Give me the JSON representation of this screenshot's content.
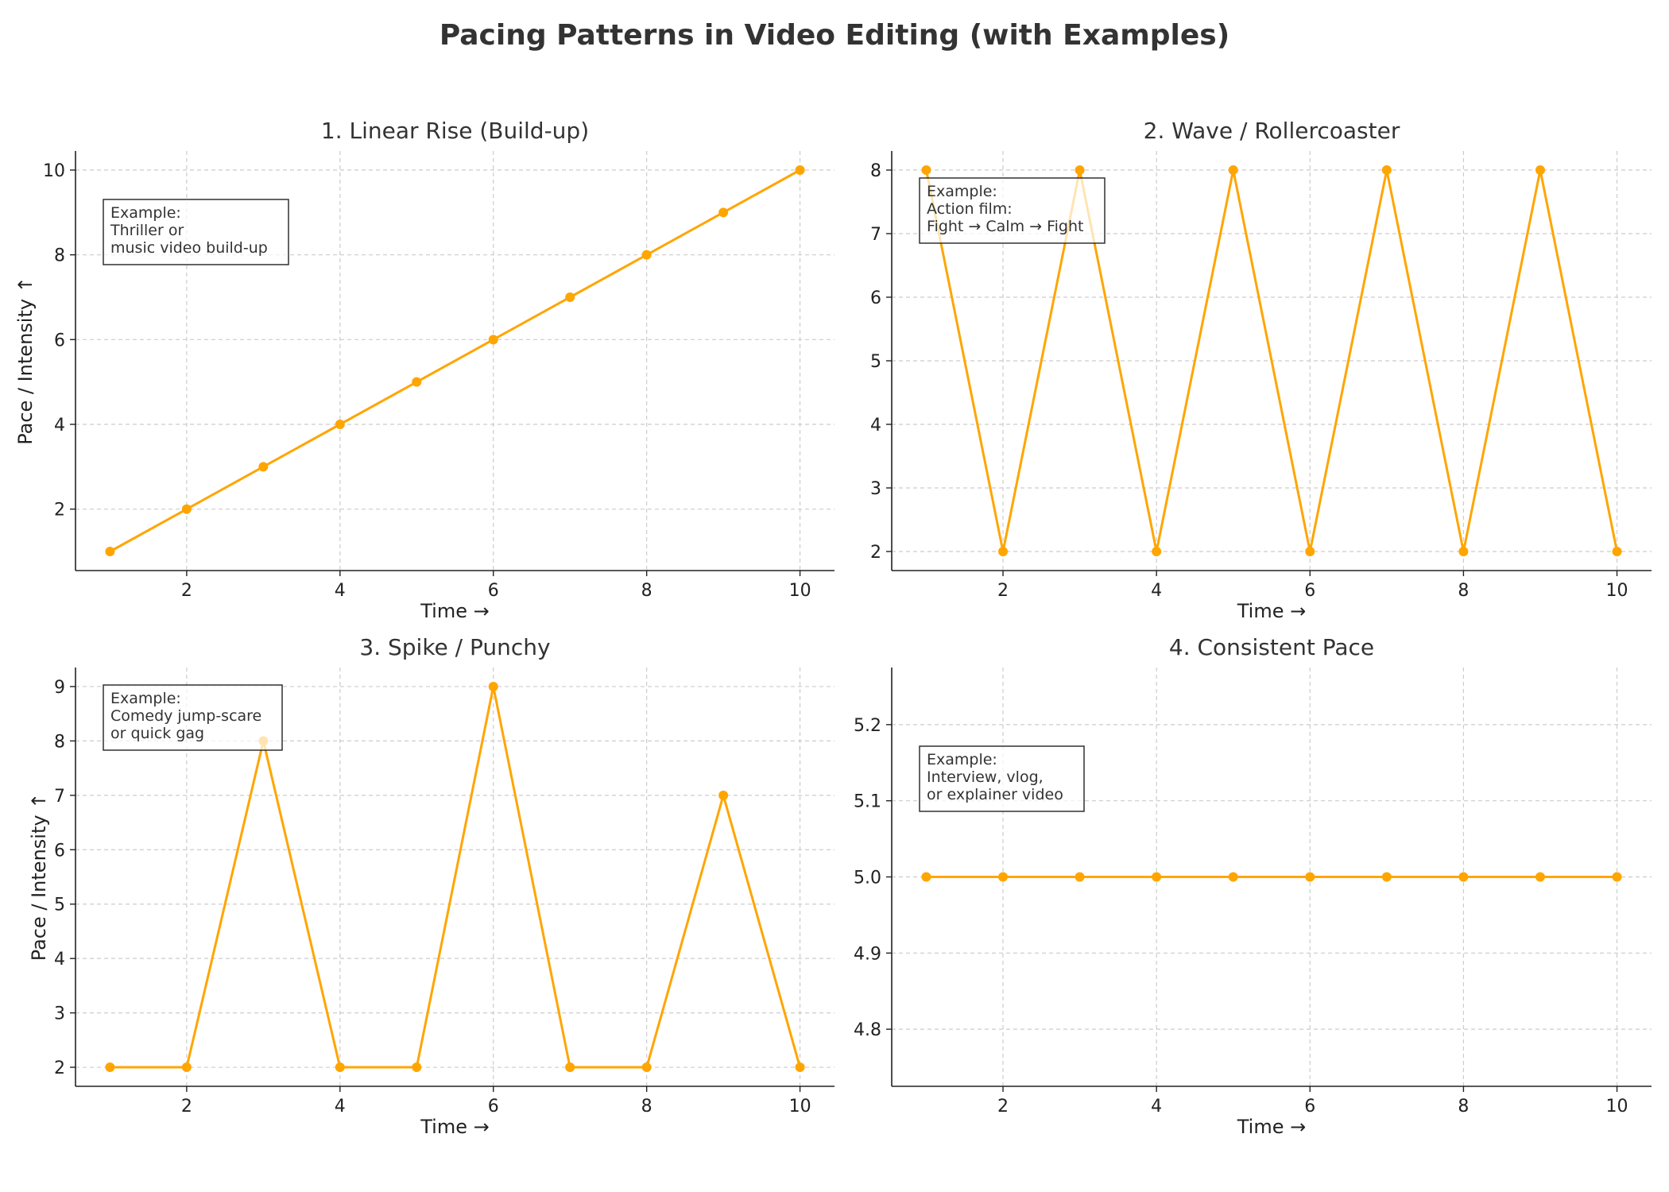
{
  "figure": {
    "title": "Pacing Patterns in Video Editing (with Examples)",
    "line_color": "#FFA500",
    "grid": true
  },
  "chart_data": [
    {
      "type": "line",
      "title": "1. Linear Rise (Build-up)",
      "xlabel": "Time →",
      "ylabel": "Pace / Intensity ↑",
      "x": [
        1,
        2,
        3,
        4,
        5,
        6,
        7,
        8,
        9,
        10
      ],
      "series": [
        {
          "values": [
            1,
            2,
            3,
            4,
            5,
            6,
            7,
            8,
            9,
            10
          ]
        }
      ],
      "xlim": [
        0.55,
        10.45
      ],
      "ylim": [
        0.55,
        10.45
      ],
      "xticks": [
        2,
        4,
        6,
        8,
        10
      ],
      "yticks": [
        2,
        4,
        6,
        8,
        10
      ],
      "annotation": {
        "lines": [
          "Example:",
          "Thriller or",
          "music video build-up"
        ],
        "position": "top-left"
      }
    },
    {
      "type": "line",
      "title": "2. Wave / Rollercoaster",
      "xlabel": "Time →",
      "ylabel": "",
      "x": [
        1,
        2,
        3,
        4,
        5,
        6,
        7,
        8,
        9,
        10
      ],
      "series": [
        {
          "values": [
            8,
            2,
            8,
            2,
            8,
            2,
            8,
            2,
            8,
            2
          ]
        }
      ],
      "xlim": [
        0.55,
        10.45
      ],
      "ylim": [
        1.7,
        8.3
      ],
      "xticks": [
        2,
        4,
        6,
        8,
        10
      ],
      "yticks": [
        2,
        3,
        4,
        5,
        6,
        7,
        8
      ],
      "annotation": {
        "lines": [
          "Example:",
          "Action film:",
          "Fight → Calm → Fight"
        ],
        "position": "top-left"
      }
    },
    {
      "type": "line",
      "title": "3. Spike / Punchy",
      "xlabel": "Time →",
      "ylabel": "Pace / Intensity ↑",
      "x": [
        1,
        2,
        3,
        4,
        5,
        6,
        7,
        8,
        9,
        10
      ],
      "series": [
        {
          "values": [
            2,
            2,
            8,
            2,
            2,
            9,
            2,
            2,
            7,
            2
          ]
        }
      ],
      "xlim": [
        0.55,
        10.45
      ],
      "ylim": [
        1.65,
        9.35
      ],
      "xticks": [
        2,
        4,
        6,
        8,
        10
      ],
      "yticks": [
        2,
        3,
        4,
        5,
        6,
        7,
        8,
        9
      ],
      "annotation": {
        "lines": [
          "Example:",
          "Comedy jump-scare",
          "or quick gag"
        ],
        "position": "top-left"
      }
    },
    {
      "type": "line",
      "title": "4. Consistent Pace",
      "xlabel": "Time →",
      "ylabel": "",
      "x": [
        1,
        2,
        3,
        4,
        5,
        6,
        7,
        8,
        9,
        10
      ],
      "series": [
        {
          "values": [
            5,
            5,
            5,
            5,
            5,
            5,
            5,
            5,
            5,
            5
          ]
        }
      ],
      "xlim": [
        0.55,
        10.45
      ],
      "ylim": [
        4.725,
        5.275
      ],
      "xticks": [
        2,
        4,
        6,
        8,
        10
      ],
      "yticks": [
        4.8,
        4.9,
        5.0,
        5.1,
        5.2
      ],
      "ytick_labels": [
        "4.8",
        "4.9",
        "5.0",
        "5.1",
        "5.2"
      ],
      "annotation": {
        "lines": [
          "Example:",
          "Interview, vlog,",
          "or explainer video"
        ],
        "position": "top-left"
      }
    }
  ]
}
